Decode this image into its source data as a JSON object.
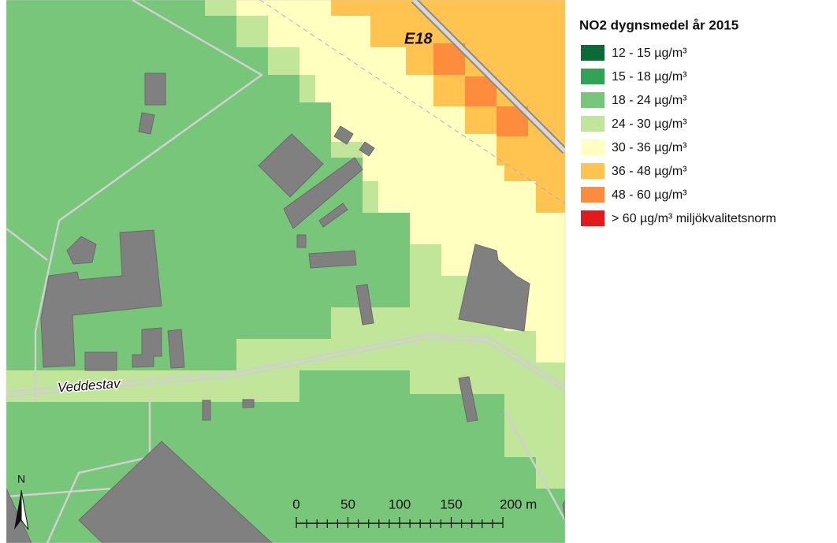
{
  "legend": {
    "title": "NO2  dygnsmedel år 2015",
    "items": [
      {
        "label": "12 - 15 µg/m³",
        "color": "#0a6b36"
      },
      {
        "label": "15 - 18 µg/m³",
        "color": "#31a354"
      },
      {
        "label": "18 - 24 µg/m³",
        "color": "#78c679"
      },
      {
        "label": "24 - 30 µg/m³",
        "color": "#c2e699"
      },
      {
        "label": "30 - 36 µg/m³",
        "color": "#ffffc0"
      },
      {
        "label": "36 - 48 µg/m³",
        "color": "#fec44f"
      },
      {
        "label": "48 - 60 µg/m³",
        "color": "#fd8d3c"
      },
      {
        "label": "> 60 µg/m³ miljökvalitetsnorm",
        "color": "#e31a1c"
      }
    ]
  },
  "map": {
    "road_labels": [
      "E18",
      "Veddestav"
    ],
    "north": "N"
  },
  "scale_bar": {
    "labels": [
      "0",
      "50",
      "100",
      "150",
      "200 m"
    ]
  }
}
